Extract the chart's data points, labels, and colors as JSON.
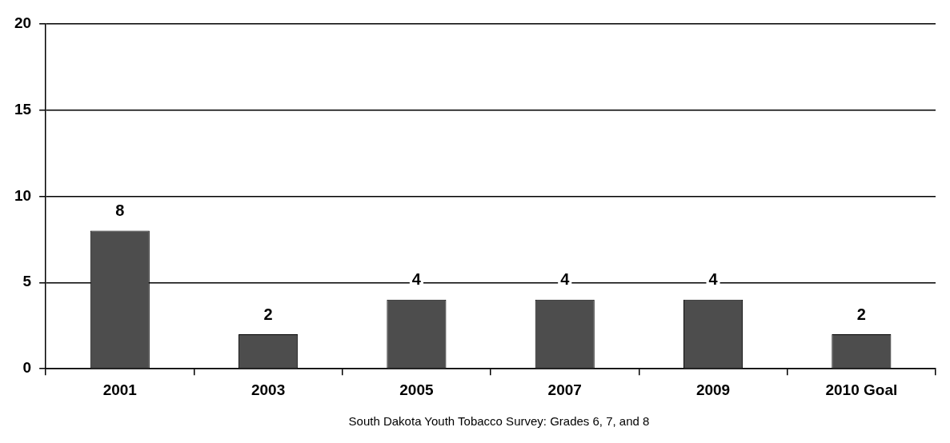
{
  "chart_data": {
    "type": "bar",
    "categories": [
      "2001",
      "2003",
      "2005",
      "2007",
      "2009",
      "2010 Goal"
    ],
    "values": [
      8,
      2,
      4,
      4,
      4,
      2
    ],
    "color": "#4d4d4d",
    "ylim": [
      0,
      20
    ],
    "yticks": [
      0,
      5,
      10,
      15,
      20
    ],
    "grid": "y",
    "data_labels": true,
    "annotations": [
      "South Dakota Youth Tobacco Survey: Grades 6, 7, and 8"
    ]
  }
}
